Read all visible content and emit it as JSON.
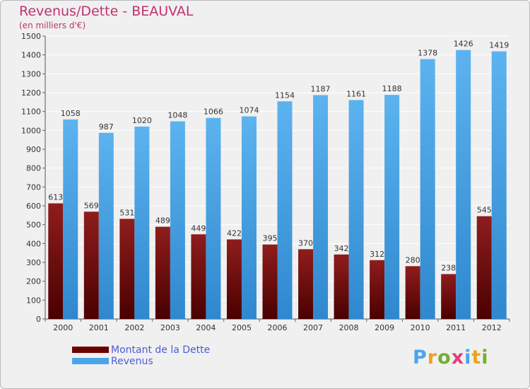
{
  "header": {
    "title": "Revenus/Dette - BEAUVAL",
    "subtitle": "(en milliers d'€)"
  },
  "chart_data": {
    "type": "bar",
    "title": "Revenus/Dette - BEAUVAL",
    "subtitle": "(en milliers d'€)",
    "categories": [
      "2000",
      "2001",
      "2002",
      "2003",
      "2004",
      "2005",
      "2006",
      "2007",
      "2008",
      "2009",
      "2010",
      "2011",
      "2012"
    ],
    "series": [
      {
        "name": "Montant de la Dette",
        "values": [
          613,
          569,
          531,
          489,
          449,
          422,
          395,
          370,
          342,
          312,
          280,
          238,
          545
        ],
        "color": "#7a0a0a"
      },
      {
        "name": "Revenus",
        "values": [
          1058,
          987,
          1020,
          1048,
          1066,
          1074,
          1154,
          1187,
          1161,
          1188,
          1378,
          1426,
          1419
        ],
        "color": "#4aa6e8"
      }
    ],
    "yticks": [
      0,
      100,
      200,
      300,
      400,
      500,
      600,
      700,
      800,
      900,
      1000,
      1100,
      1200,
      1300,
      1400,
      1500
    ],
    "ylim": [
      0,
      1500
    ],
    "grid": true,
    "legend_position": "bottom-left"
  },
  "legend": {
    "items": [
      {
        "label": "Montant de la Dette",
        "color": "#6b0000"
      },
      {
        "label": "Revenus",
        "color": "#4aa6e8"
      }
    ]
  },
  "logo": {
    "text": "Proxiti",
    "letter_colors": [
      "#4aa6e8",
      "#f0a020",
      "#70b030",
      "#e0407a",
      "#4aa6e8",
      "#f0a020",
      "#70b030"
    ]
  }
}
